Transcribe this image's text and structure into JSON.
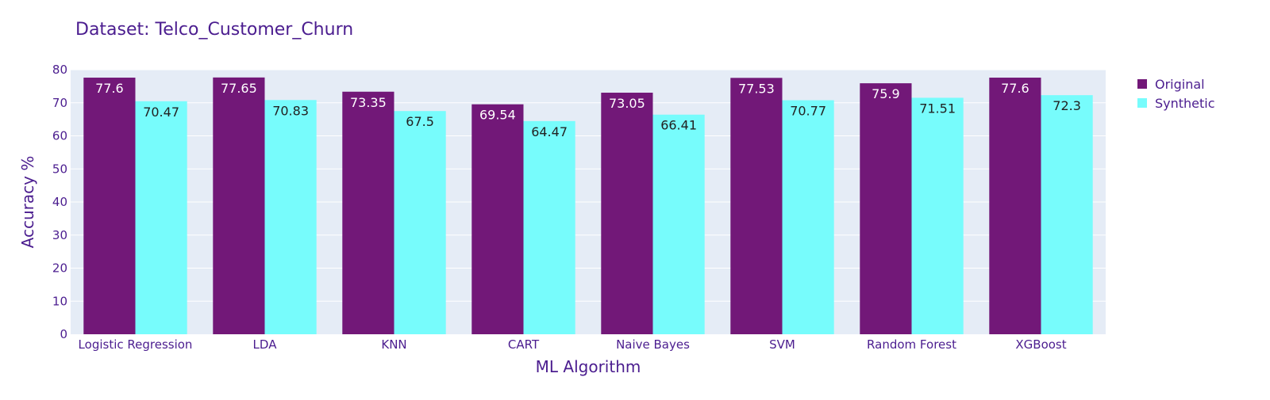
{
  "chart_data": {
    "type": "bar",
    "title": "Dataset: Telco_Customer_Churn",
    "xlabel": "ML Algorithm",
    "ylabel": "Accuracy %",
    "ylim": [
      0,
      80
    ],
    "yticks": [
      0,
      10,
      20,
      30,
      40,
      50,
      60,
      70,
      80
    ],
    "grid": true,
    "legend_position": "top-right",
    "categories": [
      "Logistic Regression",
      "LDA",
      "KNN",
      "CART",
      "Naive Bayes",
      "SVM",
      "Random Forest",
      "XGBoost"
    ],
    "series": [
      {
        "name": "Original",
        "color": "#721878",
        "label_color": "#ffffff",
        "values": [
          77.6,
          77.65,
          73.35,
          69.54,
          73.05,
          77.53,
          75.9,
          77.6
        ]
      },
      {
        "name": "Synthetic",
        "color": "#77fcfc",
        "label_color": "#222222",
        "values": [
          70.47,
          70.83,
          67.5,
          64.47,
          66.41,
          70.77,
          71.51,
          72.3
        ]
      }
    ],
    "plot_background": "#e5ecf6",
    "text_color": "#4b1d8f"
  }
}
